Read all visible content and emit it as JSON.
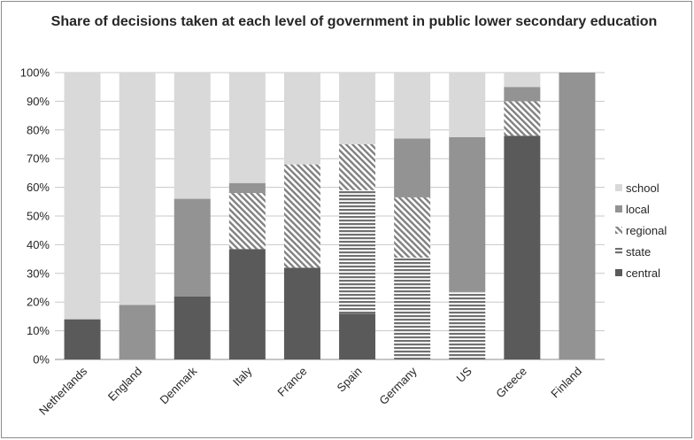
{
  "chart_data": {
    "type": "bar",
    "stacked": true,
    "title": "Share of decisions taken at each  level of government in public lower secondary education",
    "categories": [
      "Netherlands",
      "England",
      "Denmark",
      "Italy",
      "France",
      "Spain",
      "Germany",
      "US",
      "Greece",
      "Finland"
    ],
    "series": [
      {
        "name": "central",
        "values": [
          14,
          0,
          22,
          38.5,
          32,
          16,
          0,
          0,
          78,
          0
        ],
        "color": "#5a5a5a",
        "pattern": "solid"
      },
      {
        "name": "state",
        "values": [
          0,
          0,
          0,
          0,
          0,
          43,
          35.5,
          23.5,
          0,
          0
        ],
        "color": "#707070",
        "pattern": "horizontal-stripes"
      },
      {
        "name": "regional",
        "values": [
          0,
          0,
          0,
          19.5,
          36,
          16,
          21,
          0,
          12,
          0
        ],
        "color": "#808080",
        "pattern": "diagonal-hatch"
      },
      {
        "name": "local",
        "values": [
          0,
          19,
          34,
          3.5,
          0,
          0,
          20.5,
          54,
          5,
          100
        ],
        "color": "#939393",
        "pattern": "solid"
      },
      {
        "name": "school",
        "values": [
          86,
          81,
          44,
          38.5,
          32,
          25,
          23,
          22.5,
          5,
          0
        ],
        "color": "#d9d9d9",
        "pattern": "solid"
      }
    ],
    "y_ticks": [
      "0%",
      "10%",
      "20%",
      "30%",
      "40%",
      "50%",
      "60%",
      "70%",
      "80%",
      "90%",
      "100%"
    ],
    "ylim": [
      0,
      100
    ],
    "grid": true,
    "legend_position": "right",
    "legend_order": [
      "school",
      "local",
      "regional",
      "state",
      "central"
    ]
  }
}
